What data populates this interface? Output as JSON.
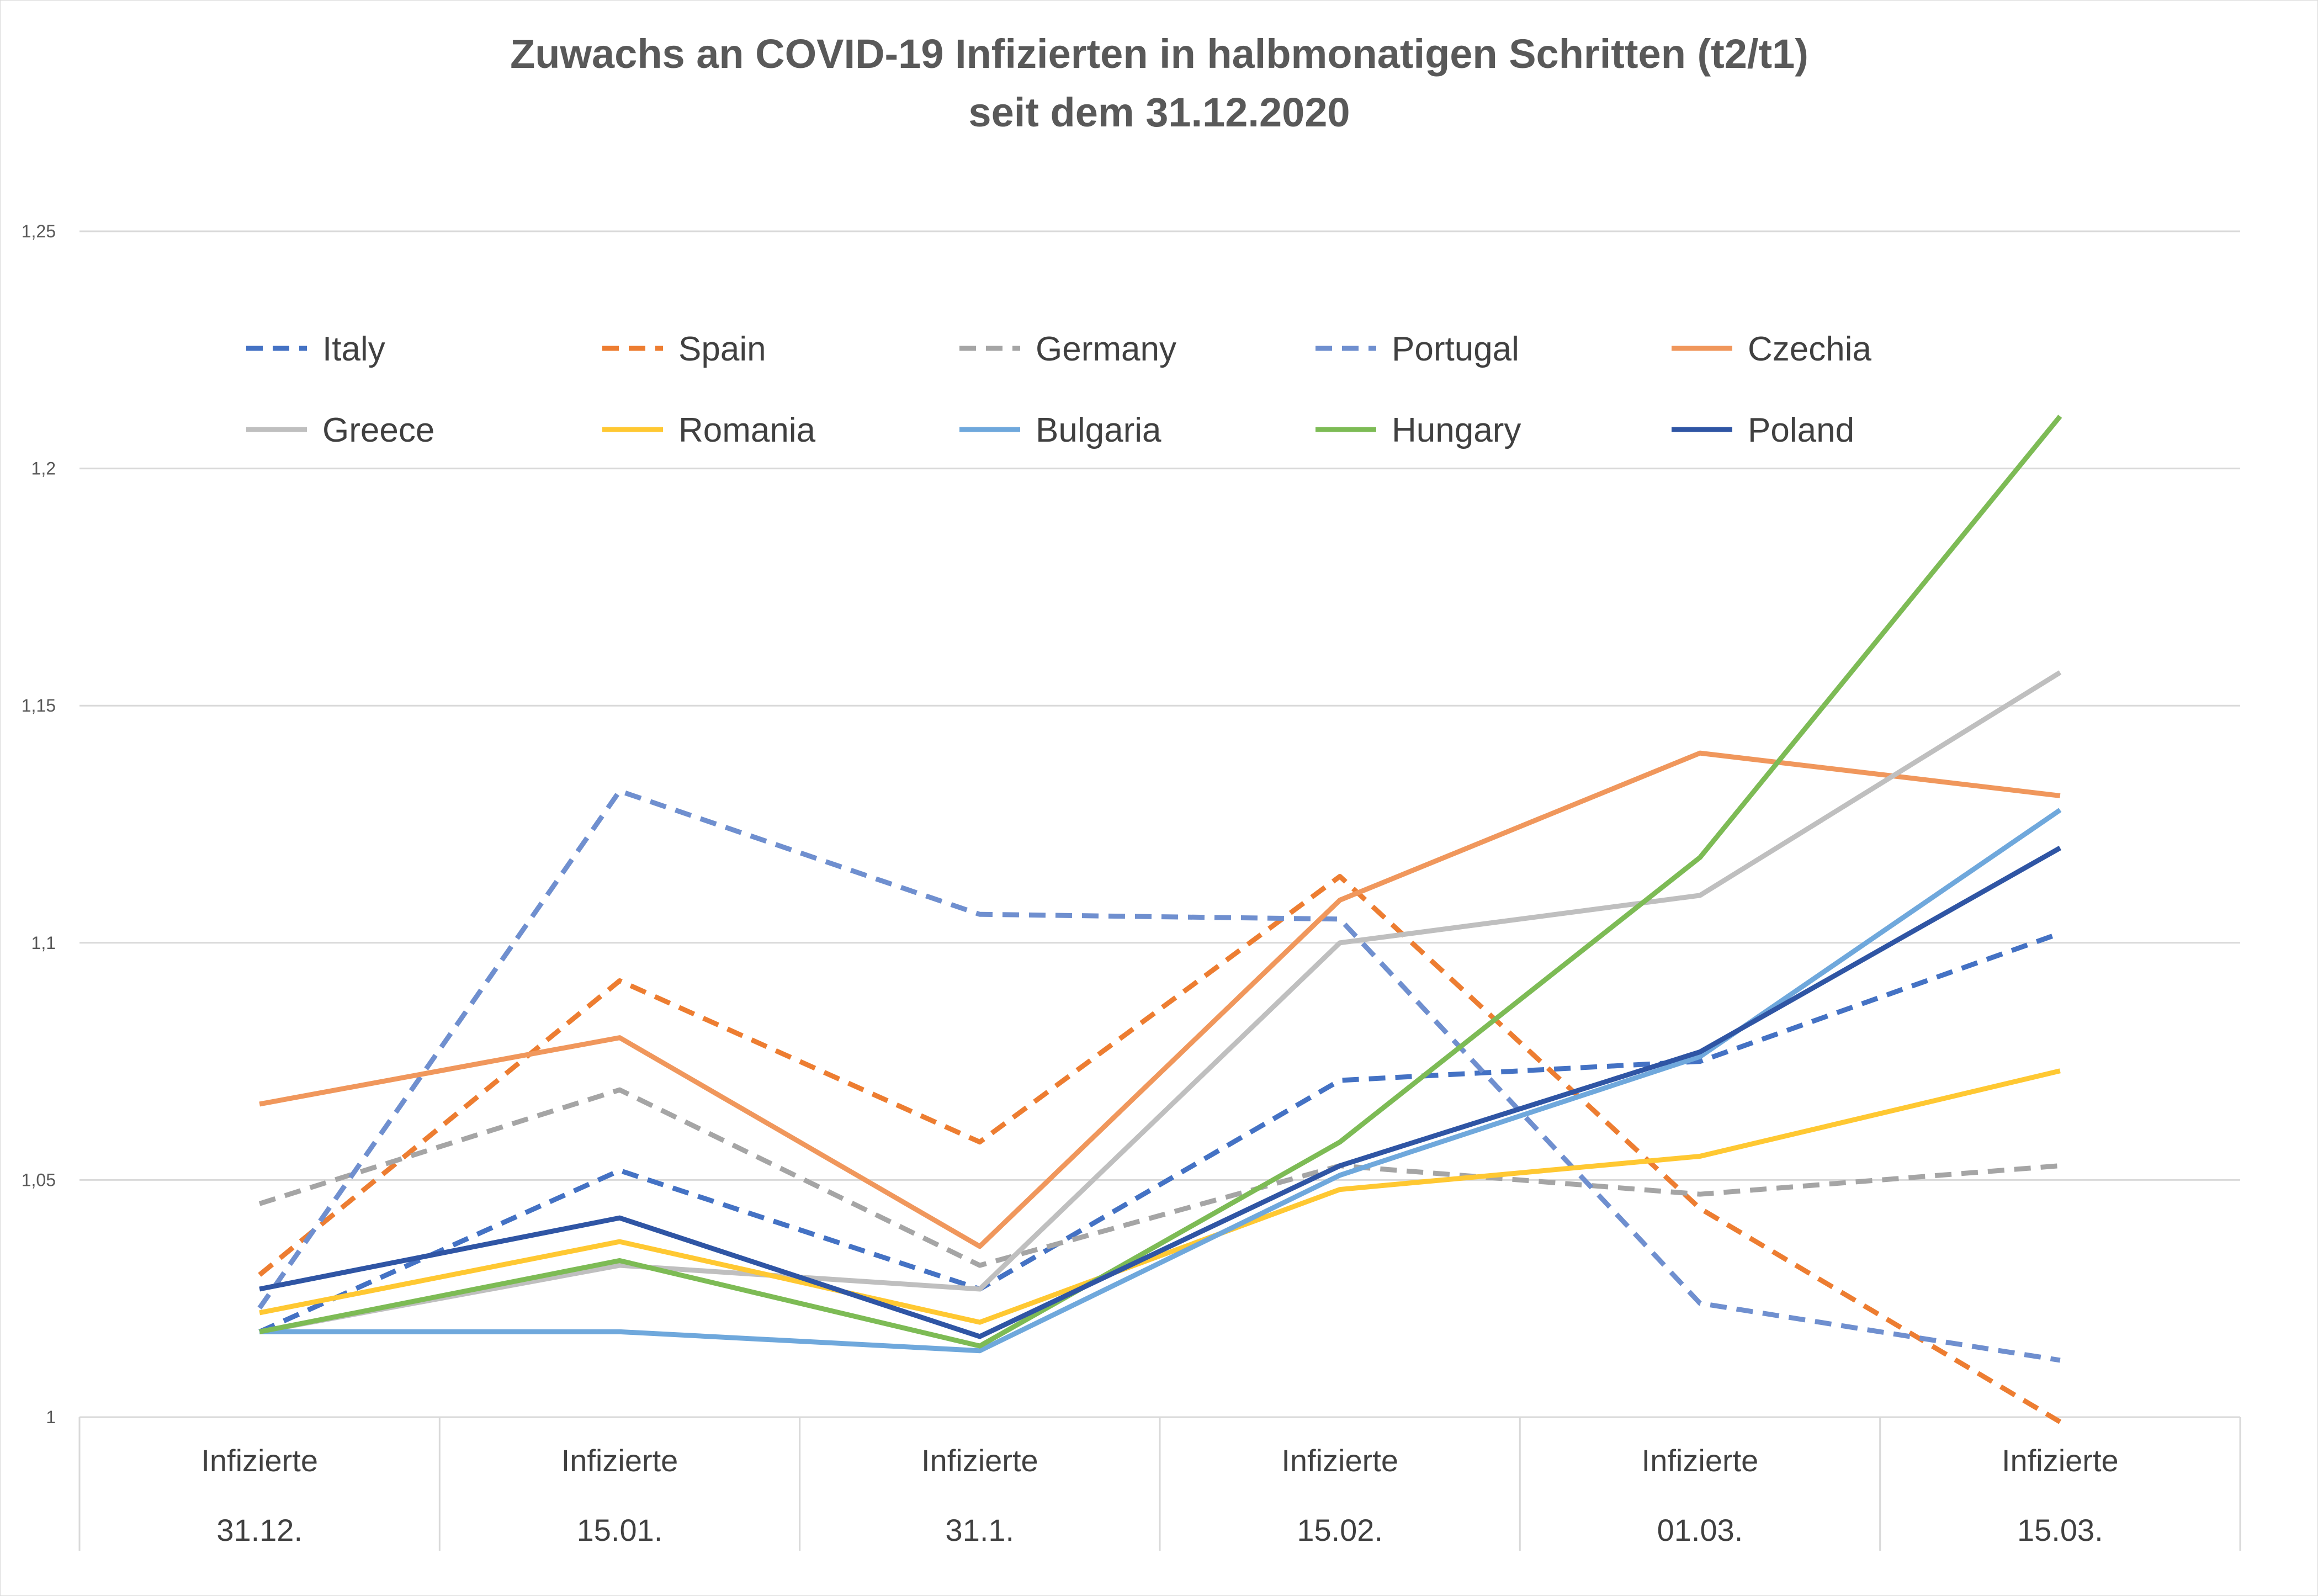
{
  "chart_data": {
    "type": "line",
    "title": "Zuwachs an COVID-19 Infizierten in halbmonatigen Schritten (t2/t1)",
    "subtitle": "seit dem 31.12.2020",
    "xlabel": "",
    "ylabel": "",
    "ylim": [
      1,
      1.25
    ],
    "yticks": [
      1,
      1.05,
      1.1,
      1.15,
      1.2,
      1.25
    ],
    "ytick_labels": [
      "1",
      "1,05",
      "1,1",
      "1,15",
      "1,2",
      "1,25"
    ],
    "grid": true,
    "legend_position": "top (inside plot area)",
    "categories": [
      {
        "line1": "Infizierte",
        "line2": "31.12."
      },
      {
        "line1": "Infizierte",
        "line2": "15.01."
      },
      {
        "line1": "Infizierte",
        "line2": "31.1."
      },
      {
        "line1": "Infizierte",
        "line2": "15.02."
      },
      {
        "line1": "Infizierte",
        "line2": "01.03."
      },
      {
        "line1": "Infizierte",
        "line2": "15.03."
      }
    ],
    "series": [
      {
        "name": "Italy",
        "color": "#4472C4",
        "dash": true,
        "values": [
          1.018,
          1.052,
          1.027,
          1.071,
          1.075,
          1.102
        ]
      },
      {
        "name": "Spain",
        "color": "#ED7D31",
        "dash": true,
        "values": [
          1.03,
          1.092,
          1.058,
          1.114,
          1.044,
          0.999
        ]
      },
      {
        "name": "Germany",
        "color": "#A5A5A5",
        "dash": true,
        "values": [
          1.045,
          1.069,
          1.032,
          1.053,
          1.047,
          1.053
        ]
      },
      {
        "name": "Portugal",
        "color": "#6F8FCF",
        "dash": true,
        "values": [
          1.023,
          1.132,
          1.106,
          1.105,
          1.024,
          1.012
        ]
      },
      {
        "name": "Czechia",
        "color": "#F0975C",
        "dash": false,
        "values": [
          1.066,
          1.08,
          1.036,
          1.109,
          1.14,
          1.131
        ]
      },
      {
        "name": "Greece",
        "color": "#BFBFBF",
        "dash": false,
        "values": [
          1.018,
          1.032,
          1.027,
          1.1,
          1.11,
          1.157
        ]
      },
      {
        "name": "Romania",
        "color": "#FFC832",
        "dash": false,
        "values": [
          1.022,
          1.037,
          1.02,
          1.048,
          1.055,
          1.073
        ]
      },
      {
        "name": "Bulgaria",
        "color": "#6FA8DC",
        "dash": false,
        "values": [
          1.018,
          1.018,
          1.014,
          1.051,
          1.076,
          1.128
        ]
      },
      {
        "name": "Hungary",
        "color": "#7DBB55",
        "dash": false,
        "values": [
          1.018,
          1.033,
          1.015,
          1.058,
          1.118,
          1.211
        ]
      },
      {
        "name": "Poland",
        "color": "#2F55A4",
        "dash": false,
        "values": [
          1.027,
          1.042,
          1.017,
          1.053,
          1.077,
          1.12
        ]
      }
    ]
  }
}
